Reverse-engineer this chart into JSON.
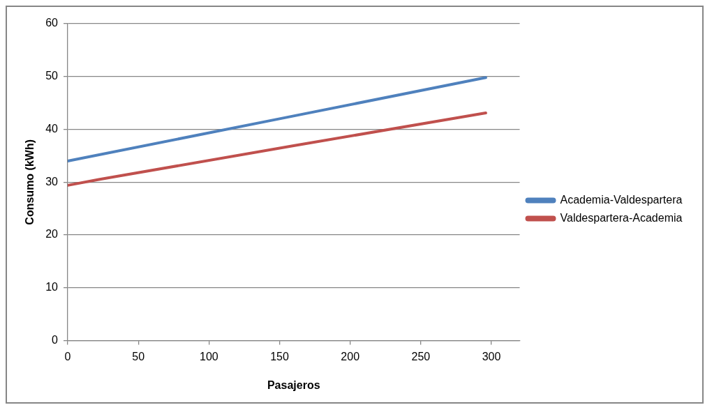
{
  "chart_data": {
    "type": "line",
    "xlabel": "Pasajeros",
    "ylabel": "Consumo (kWh)",
    "xlim": [
      0,
      320
    ],
    "xticks": [
      0,
      50,
      100,
      150,
      200,
      250,
      300
    ],
    "ylim": [
      0,
      60
    ],
    "yticks": [
      0,
      10,
      20,
      30,
      40,
      50,
      60
    ],
    "grid": "y",
    "legend": "right",
    "marker": "none",
    "line_style": "solid",
    "series": [
      {
        "name": "Academia-Valdespartera",
        "color": "#4f81bd",
        "x": [
          0,
          150,
          296
        ],
        "values": [
          34,
          42,
          49.8
        ]
      },
      {
        "name": "Valdespartera-Academia",
        "color": "#c0504d",
        "x": [
          0,
          22,
          160,
          296
        ],
        "values": [
          29.4,
          30.5,
          36.9,
          43.1
        ]
      }
    ]
  }
}
